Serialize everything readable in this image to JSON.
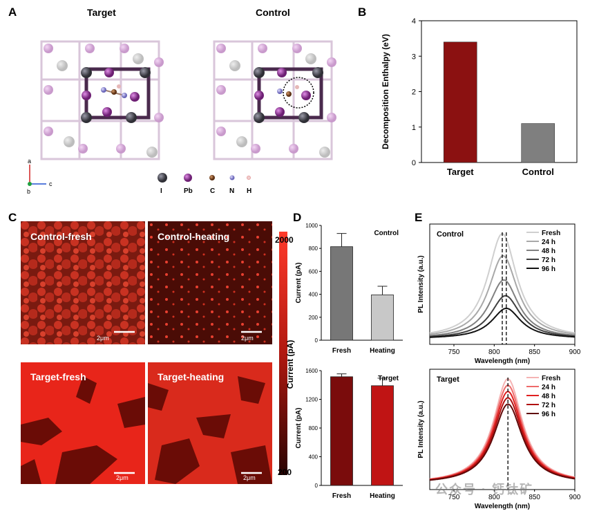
{
  "panelA": {
    "label": "A",
    "target_title": "Target",
    "control_title": "Control",
    "axes": [
      "a",
      "b",
      "c"
    ],
    "legend": [
      {
        "symbol": "I",
        "color": "#6d6a7d"
      },
      {
        "symbol": "Pb",
        "color": "#a23aa8"
      },
      {
        "symbol": "C",
        "color": "#7a4a2a"
      },
      {
        "symbol": "N",
        "color": "#8a86d0"
      },
      {
        "symbol": "H",
        "color": "#e6b7b7"
      }
    ]
  },
  "panelB": {
    "label": "B",
    "chart_data": {
      "type": "bar",
      "categories": [
        "Target",
        "Control"
      ],
      "values": [
        3.4,
        1.1
      ],
      "colors": [
        "#8b1111",
        "#7f7f7f"
      ],
      "ylabel": "Decomposition Enthalpy (eV)",
      "ylim": [
        0,
        4
      ],
      "yticks": [
        "0",
        "1",
        "2",
        "3",
        "4"
      ]
    }
  },
  "panelC": {
    "label": "C",
    "images": [
      {
        "title": "Control-fresh",
        "scale": "2μm"
      },
      {
        "title": "Control-heating",
        "scale": "2μm"
      },
      {
        "title": "Target-fresh",
        "scale": "2μm"
      },
      {
        "title": "Target-heating",
        "scale": "2μm"
      }
    ],
    "colorbar": {
      "max": "2000",
      "min": "200",
      "label": "Current (pA)"
    }
  },
  "panelD": {
    "label": "D",
    "charts": [
      {
        "title": "Control",
        "type": "bar",
        "categories": [
          "Fresh",
          "Heating"
        ],
        "values": [
          815,
          395
        ],
        "errors": [
          115,
          75
        ],
        "colors": [
          "#777777",
          "#c8c8c8"
        ],
        "ylabel": "Current (pA)",
        "ylim": [
          0,
          1000
        ],
        "yticks": [
          "0",
          "200",
          "400",
          "600",
          "800",
          "1000"
        ]
      },
      {
        "title": "Target",
        "type": "bar",
        "categories": [
          "Fresh",
          "Heating"
        ],
        "values": [
          1515,
          1390
        ],
        "errors": [
          40,
          105
        ],
        "colors": [
          "#7a0c0c",
          "#c01414"
        ],
        "ylabel": "Current (pA)",
        "ylim": [
          0,
          1600
        ],
        "yticks": [
          "0",
          "400",
          "800",
          "1200",
          "1600"
        ]
      }
    ]
  },
  "panelE": {
    "label": "E",
    "charts": [
      {
        "title": "Control",
        "type": "line",
        "xlabel": "Wavelength (nm)",
        "ylabel": "PL Intensity (a.u.)",
        "xlim": [
          720,
          900
        ],
        "xticks": [
          "750",
          "800",
          "850",
          "900"
        ],
        "dashed_lines_nm": [
          810,
          815
        ],
        "series": [
          {
            "name": "Fresh",
            "peak_nm": 810,
            "amplitude": 1.0,
            "color": "#cfcfcf"
          },
          {
            "name": "24 h",
            "peak_nm": 811,
            "amplitude": 0.79,
            "color": "#a8a8a8"
          },
          {
            "name": "48 h",
            "peak_nm": 812,
            "amplitude": 0.56,
            "color": "#808080"
          },
          {
            "name": "72 h",
            "peak_nm": 814,
            "amplitude": 0.41,
            "color": "#404040"
          },
          {
            "name": "96 h",
            "peak_nm": 815,
            "amplitude": 0.29,
            "color": "#111111"
          }
        ]
      },
      {
        "title": "Target",
        "type": "line",
        "xlabel": "Wavelength (nm)",
        "ylabel": "PL Intensity (a.u.)",
        "xlim": [
          720,
          900
        ],
        "xticks": [
          "750",
          "800",
          "850",
          "900"
        ],
        "dashed_lines_nm": [
          817
        ],
        "series": [
          {
            "name": "Fresh",
            "peak_nm": 817,
            "amplitude": 1.0,
            "color": "#f5b3b3"
          },
          {
            "name": "24 h",
            "peak_nm": 817,
            "amplitude": 0.94,
            "color": "#ee6a6a"
          },
          {
            "name": "48 h",
            "peak_nm": 817,
            "amplitude": 0.88,
            "color": "#e02020"
          },
          {
            "name": "72 h",
            "peak_nm": 817,
            "amplitude": 0.82,
            "color": "#b01010"
          },
          {
            "name": "96 h",
            "peak_nm": 817,
            "amplitude": 0.76,
            "color": "#600808"
          }
        ]
      }
    ]
  },
  "watermark": "公众号 · 钙钛矿"
}
